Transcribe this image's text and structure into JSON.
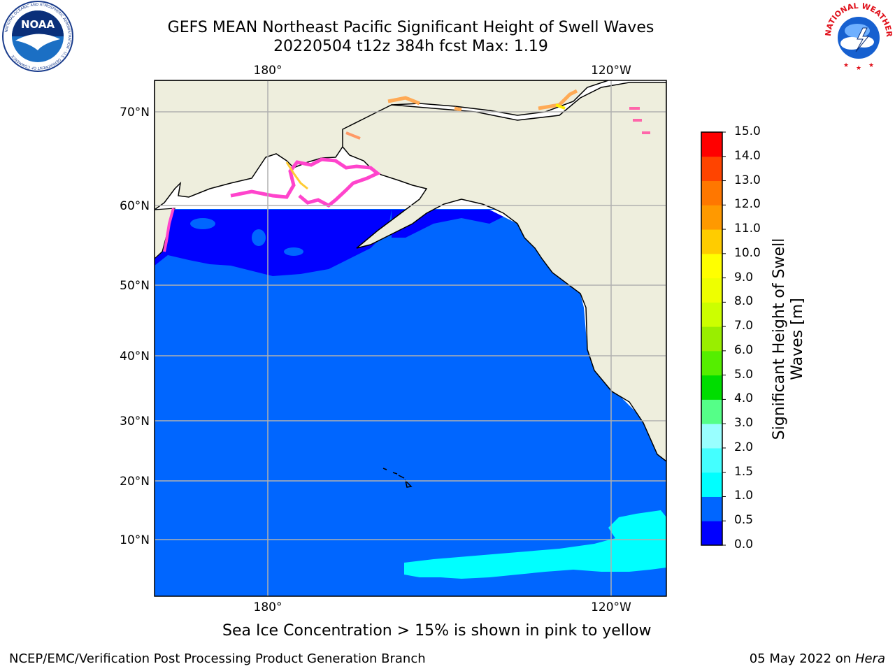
{
  "title": {
    "line1": "GEFS MEAN Northeast Pacific Significant Height of Swell Waves",
    "line2": "20220504 t12z 384h fcst   Max: 1.19"
  },
  "logos": {
    "left": {
      "name": "noaa-logo",
      "text": "NOAA",
      "ring_text": "NATIONAL OCEANIC AND ATMOSPHERIC ADMINISTRATION · U.S. DEPARTMENT OF COMMERCE"
    },
    "right": {
      "name": "nws-logo",
      "ring_text": "NATIONAL WEATHER SERVICE"
    }
  },
  "map": {
    "lon_ticks": [
      "180°",
      "120°W"
    ],
    "lat_ticks": [
      "70°N",
      "60°N",
      "50°N",
      "40°N",
      "30°N",
      "20°N",
      "10°N"
    ],
    "colors": {
      "ocean_main": "#0066ff",
      "ocean_low": "#0000ff",
      "band_cyan": "#00ffff",
      "land": "#eeeedd",
      "grid": "#b0b0b0"
    }
  },
  "colorbar": {
    "label": "Significant Height of Swell Waves [m]",
    "ticks": [
      "0.0",
      "0.5",
      "1.0",
      "1.5",
      "2.0",
      "3.0",
      "4.0",
      "5.0",
      "6.0",
      "7.0",
      "8.0",
      "9.0",
      "10.0",
      "11.0",
      "12.0",
      "13.0",
      "14.0",
      "15.0"
    ],
    "colors": [
      "#0000ff",
      "#0066ff",
      "#00ffff",
      "#44ffff",
      "#99ffff",
      "#55ff88",
      "#00dd00",
      "#55ee00",
      "#99ee00",
      "#ccff00",
      "#eeff00",
      "#ffff00",
      "#ffcc00",
      "#ff9900",
      "#ff7700",
      "#ff4400",
      "#ff0000"
    ]
  },
  "caption": "Sea Ice Concentration > 15% is shown in pink to yellow",
  "footer": {
    "left": "NCEP/EMC/Verification Post Processing Product Generation Branch",
    "right_date": "05 May 2022 on",
    "right_host": "Hera"
  }
}
